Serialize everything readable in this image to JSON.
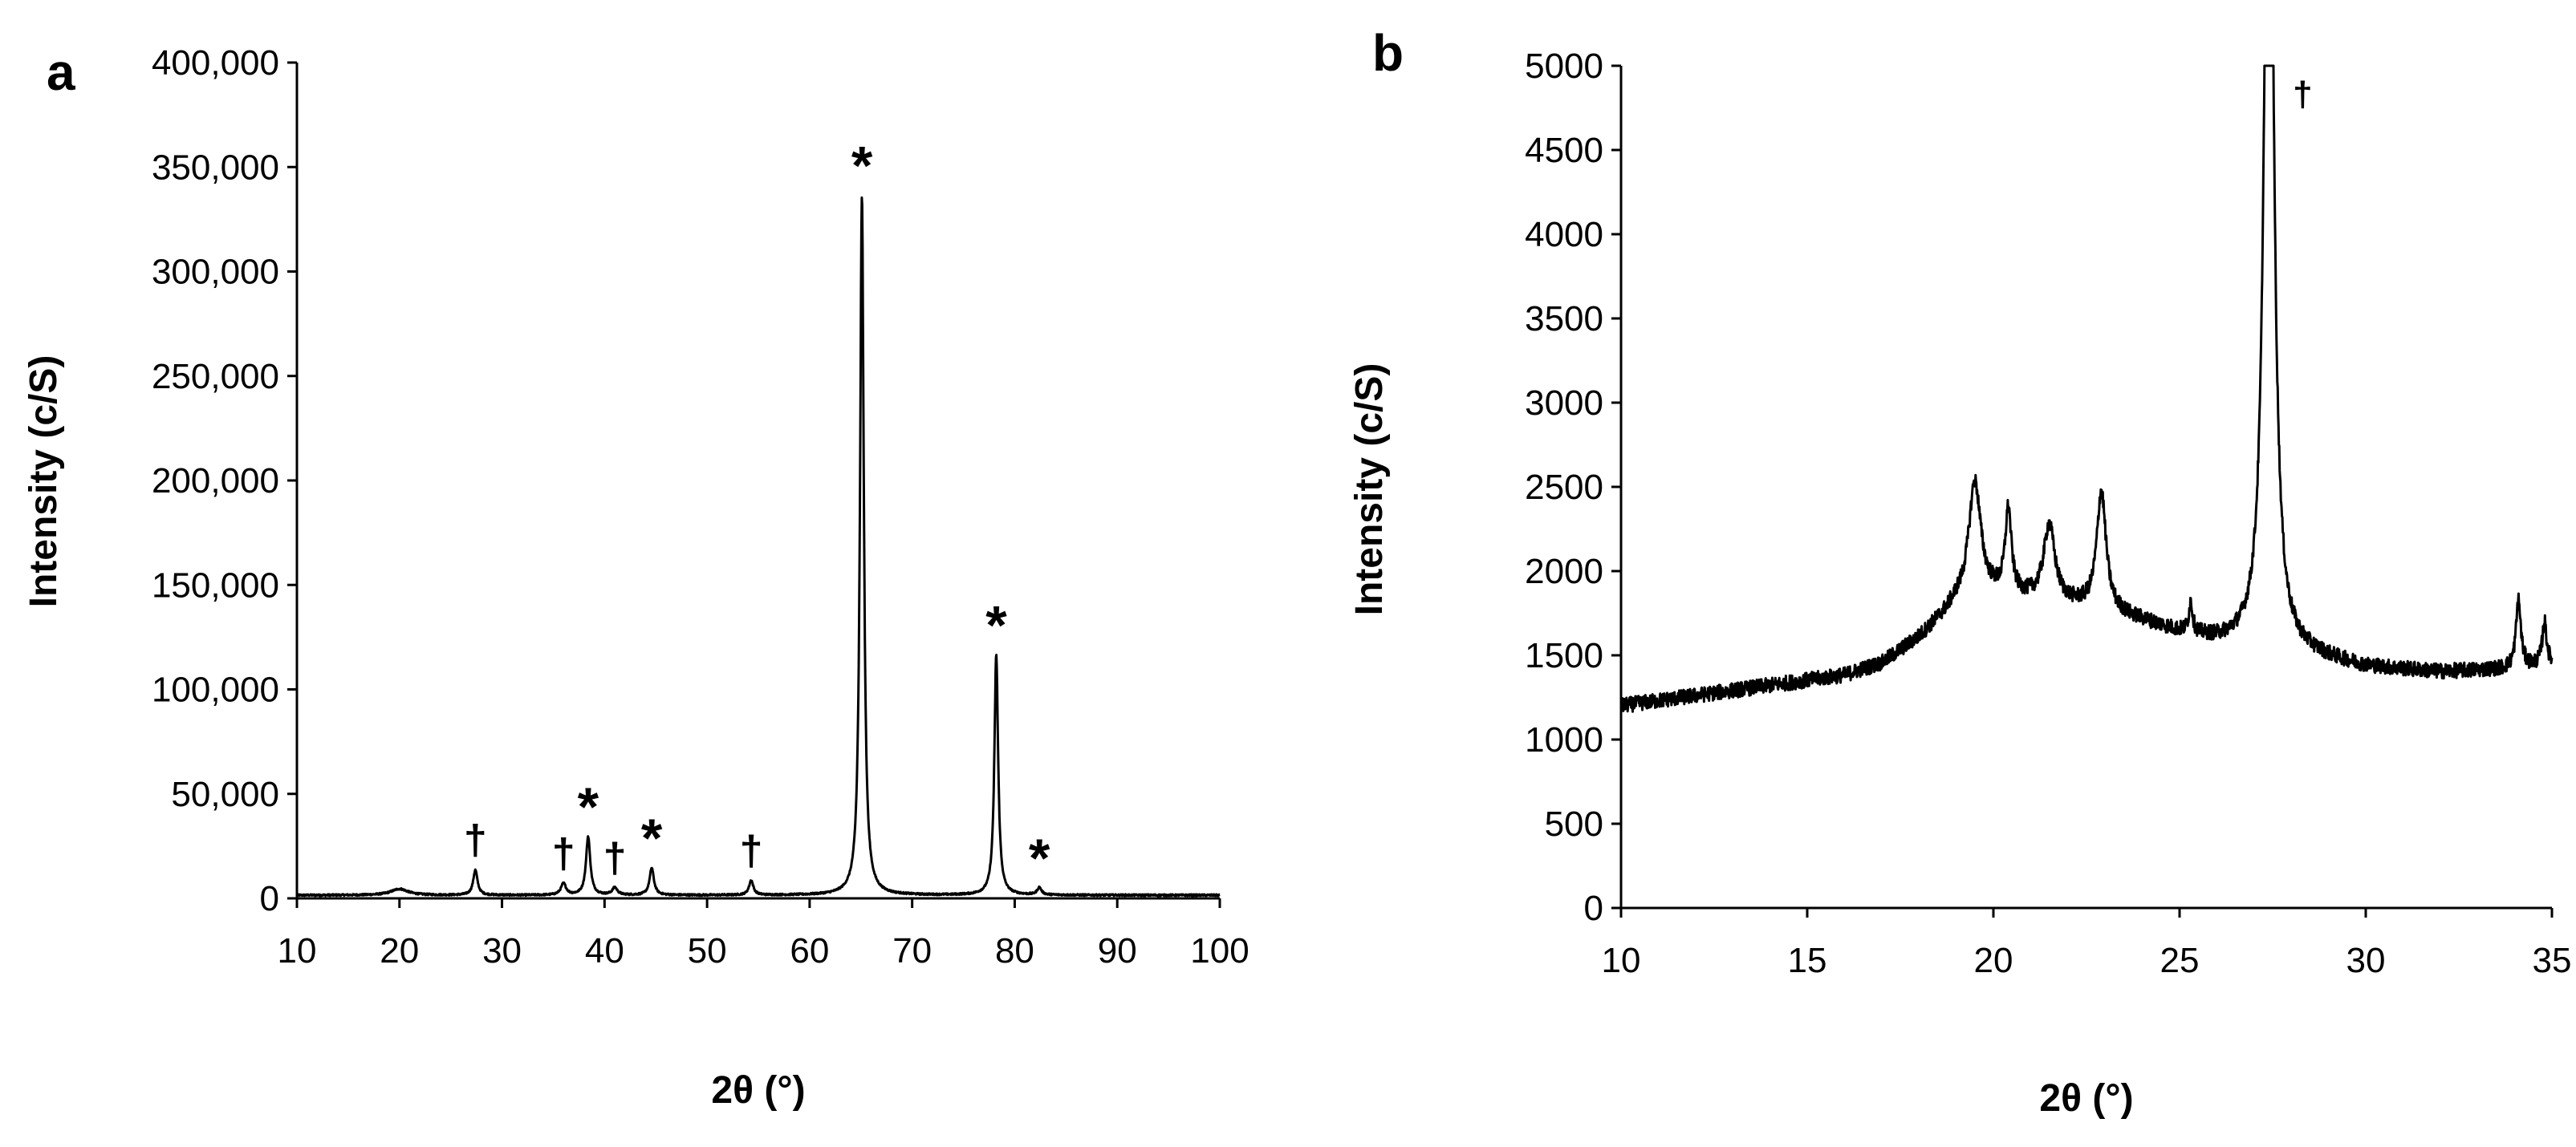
{
  "chart_data": [
    {
      "panel_label": "a",
      "type": "line",
      "xlabel": "2θ (°)",
      "ylabel": "Intensity (c/S)",
      "xlim": [
        10,
        100
      ],
      "ylim": [
        0,
        400000
      ],
      "xticks": [
        10,
        20,
        30,
        40,
        50,
        60,
        70,
        80,
        90,
        100
      ],
      "xtick_labels": [
        "10",
        "20",
        "30",
        "40",
        "50",
        "60",
        "70",
        "80",
        "90",
        "100"
      ],
      "yticks": [
        0,
        50000,
        100000,
        150000,
        200000,
        250000,
        300000,
        350000,
        400000
      ],
      "ytick_labels": [
        "0",
        "50,000",
        "100,000",
        "150,000",
        "200,000",
        "250,000",
        "300,000",
        "350,000",
        "400,000"
      ],
      "baseline": 1500,
      "peaks": [
        {
          "x": 20.0,
          "y": 3000,
          "w": 1.0
        },
        {
          "x": 27.4,
          "y": 12000,
          "w": 0.25
        },
        {
          "x": 36.0,
          "y": 5500,
          "w": 0.3
        },
        {
          "x": 38.4,
          "y": 28000,
          "w": 0.25
        },
        {
          "x": 41.0,
          "y": 3500,
          "w": 0.3
        },
        {
          "x": 44.6,
          "y": 13000,
          "w": 0.25
        },
        {
          "x": 54.3,
          "y": 7000,
          "w": 0.25
        },
        {
          "x": 65.1,
          "y": 335000,
          "w": 0.22
        },
        {
          "x": 78.2,
          "y": 115000,
          "w": 0.22
        },
        {
          "x": 82.4,
          "y": 3500,
          "w": 0.25
        }
      ],
      "annotations": [
        {
          "text": "†",
          "x": 27.4,
          "y": 12000
        },
        {
          "text": "†",
          "x": 36.0,
          "y": 5500
        },
        {
          "text": "*",
          "x": 38.4,
          "y": 28000
        },
        {
          "text": "†",
          "x": 41.0,
          "y": 3500
        },
        {
          "text": "*",
          "x": 44.6,
          "y": 13000
        },
        {
          "text": "†",
          "x": 54.3,
          "y": 7000
        },
        {
          "text": "*",
          "x": 65.1,
          "y": 335000
        },
        {
          "text": "*",
          "x": 78.2,
          "y": 115000
        },
        {
          "text": "*",
          "x": 82.4,
          "y": 3500
        }
      ]
    },
    {
      "panel_label": "b",
      "type": "line",
      "xlabel": "2θ (°)",
      "ylabel": "Intensity (c/S)",
      "xlim": [
        10,
        35
      ],
      "ylim": [
        0,
        5000
      ],
      "xticks": [
        10,
        15,
        20,
        25,
        30,
        35
      ],
      "xtick_labels": [
        "10",
        "15",
        "20",
        "25",
        "30",
        "35"
      ],
      "yticks": [
        0,
        500,
        1000,
        1500,
        2000,
        2500,
        3000,
        3500,
        4000,
        4500,
        5000
      ],
      "ytick_labels": [
        "0",
        "500",
        "1000",
        "1500",
        "2000",
        "2500",
        "3000",
        "3500",
        "4000",
        "4500",
        "5000"
      ],
      "background": [
        [
          10,
          1200
        ],
        [
          12,
          1260
        ],
        [
          14,
          1320
        ],
        [
          16,
          1380
        ],
        [
          17,
          1450
        ],
        [
          18,
          1600
        ],
        [
          19,
          1800
        ],
        [
          20,
          1850
        ],
        [
          21,
          1830
        ],
        [
          22,
          1800
        ],
        [
          23,
          1760
        ],
        [
          24,
          1700
        ],
        [
          25,
          1630
        ],
        [
          26,
          1580
        ],
        [
          27,
          1560
        ],
        [
          28,
          1520
        ],
        [
          30,
          1430
        ],
        [
          32,
          1400
        ],
        [
          34,
          1420
        ],
        [
          35,
          1450
        ]
      ],
      "peaks": [
        {
          "x": 19.5,
          "y": 700,
          "w": 0.2
        },
        {
          "x": 20.4,
          "y": 500,
          "w": 0.1
        },
        {
          "x": 21.5,
          "y": 450,
          "w": 0.18
        },
        {
          "x": 22.9,
          "y": 700,
          "w": 0.15
        },
        {
          "x": 25.3,
          "y": 180,
          "w": 0.06
        },
        {
          "x": 27.4,
          "y": 6500,
          "w": 0.13
        },
        {
          "x": 34.1,
          "y": 400,
          "w": 0.08
        },
        {
          "x": 34.8,
          "y": 250,
          "w": 0.07
        }
      ],
      "noise": 45,
      "annotations": [
        {
          "text": "†",
          "x": 27.4,
          "y": 5000
        }
      ]
    }
  ]
}
